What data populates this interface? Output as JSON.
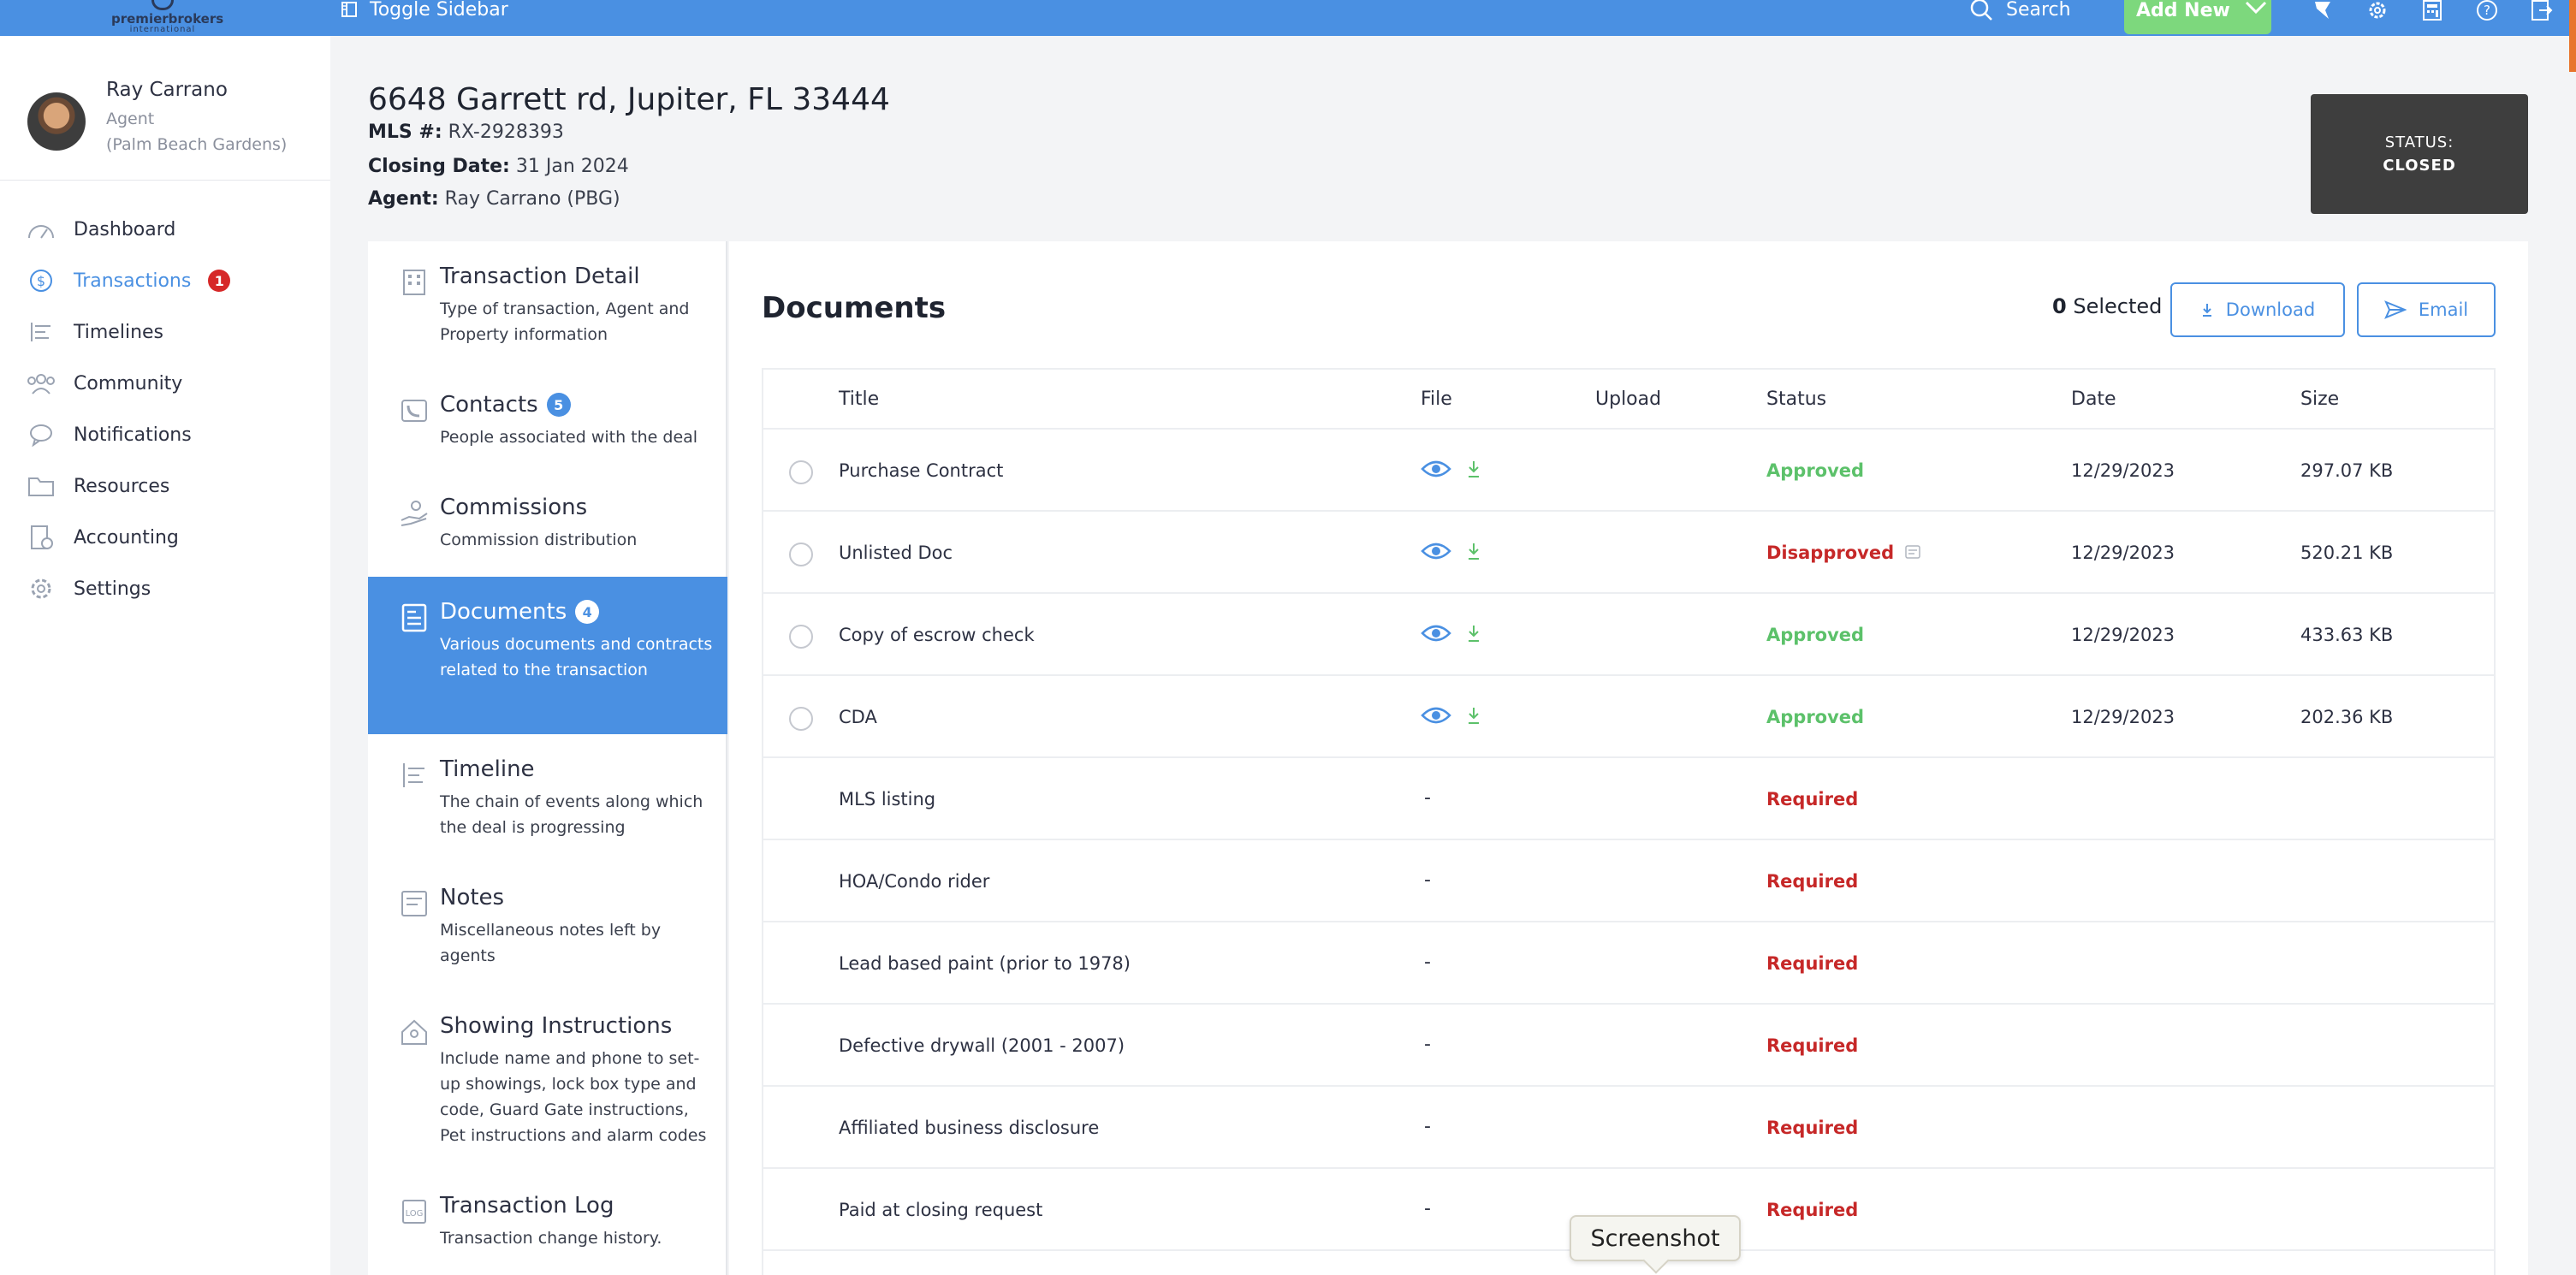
{
  "header": {
    "logo_brand": "premierbrokers",
    "logo_sub": "international",
    "toggle_label": "Toggle Sidebar",
    "search_label": "Search",
    "add_new_label": "Add New"
  },
  "user": {
    "name": "Ray Carrano",
    "role": "Agent",
    "office": "(Palm Beach Gardens)"
  },
  "sidebar": {
    "items": [
      {
        "label": "Dashboard",
        "icon": "dashboard-icon"
      },
      {
        "label": "Transactions",
        "icon": "dollar-icon",
        "badge": "1",
        "active": true
      },
      {
        "label": "Timelines",
        "icon": "timeline-icon"
      },
      {
        "label": "Community",
        "icon": "community-icon"
      },
      {
        "label": "Notifications",
        "icon": "chat-icon"
      },
      {
        "label": "Resources",
        "icon": "folder-icon"
      },
      {
        "label": "Accounting",
        "icon": "accounting-icon"
      },
      {
        "label": "Settings",
        "icon": "gear-icon"
      }
    ]
  },
  "transaction": {
    "address": "6648 Garrett rd, Jupiter, FL 33444",
    "mls_label": "MLS #:",
    "mls_value": "RX-2928393",
    "closing_label": "Closing Date:",
    "closing_value": "31 Jan 2024",
    "agent_label": "Agent:",
    "agent_value": "Ray Carrano (PBG)",
    "status_label": "STATUS:",
    "status_value": "CLOSED"
  },
  "sections": [
    {
      "title": "Transaction Detail",
      "desc": "Type of transaction, Agent and Property information"
    },
    {
      "title": "Contacts",
      "badge": "5",
      "desc": "People associated with the deal"
    },
    {
      "title": "Commissions",
      "desc": "Commission distribution"
    },
    {
      "title": "Documents",
      "badge": "4",
      "desc": "Various documents and contracts related to the transaction",
      "active": true
    },
    {
      "title": "Timeline",
      "desc": "The chain of events along which the deal is progressing"
    },
    {
      "title": "Notes",
      "desc": "Miscellaneous notes left by agents"
    },
    {
      "title": "Showing Instructions",
      "desc": "Include name and phone to set-up showings, lock box type and code, Guard Gate instructions, Pet instructions and alarm codes"
    },
    {
      "title": "Transaction Log",
      "desc": "Transaction change history."
    }
  ],
  "documents": {
    "title": "Documents",
    "selected_count": "0",
    "selected_label": "Selected",
    "download_label": "Download",
    "email_label": "Email",
    "columns": [
      "Title",
      "File",
      "Upload",
      "Status",
      "Date",
      "Size"
    ],
    "rows": [
      {
        "title": "Purchase Contract",
        "has_file": true,
        "status": "Approved",
        "date": "12/29/2023",
        "size": "297.07 KB"
      },
      {
        "title": "Unlisted Doc",
        "has_file": true,
        "status": "Disapproved",
        "date": "12/29/2023",
        "size": "520.21 KB"
      },
      {
        "title": "Copy of escrow check",
        "has_file": true,
        "status": "Approved",
        "date": "12/29/2023",
        "size": "433.63 KB"
      },
      {
        "title": "CDA",
        "has_file": true,
        "status": "Approved",
        "date": "12/29/2023",
        "size": "202.36 KB"
      },
      {
        "title": "MLS listing",
        "has_file": false,
        "file": "-",
        "status": "Required"
      },
      {
        "title": "HOA/Condo rider",
        "has_file": false,
        "file": "-",
        "status": "Required"
      },
      {
        "title": "Lead based paint (prior to 1978)",
        "has_file": false,
        "file": "-",
        "status": "Required"
      },
      {
        "title": "Defective drywall (2001 - 2007)",
        "has_file": false,
        "file": "-",
        "status": "Required"
      },
      {
        "title": "Affiliated business disclosure",
        "has_file": false,
        "file": "-",
        "status": "Required"
      },
      {
        "title": "Paid at closing request",
        "has_file": false,
        "file": "-",
        "status": "Required"
      }
    ]
  },
  "tooltip": {
    "text": "Screenshot"
  },
  "colors": {
    "accent": "#4a90e2",
    "approved": "#5cc16a",
    "alert": "#c62828",
    "add_new": "#7dd87d"
  }
}
